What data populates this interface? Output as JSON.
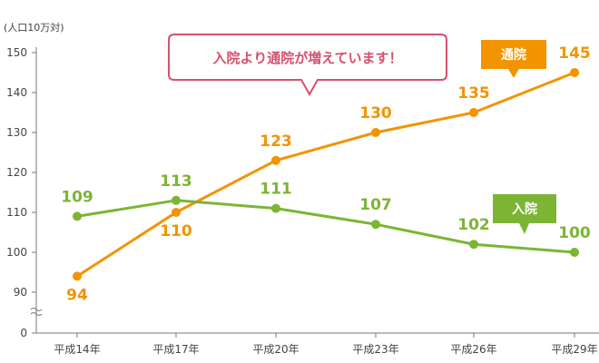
{
  "chart_data": {
    "type": "line",
    "ylabel": "(人口10万対)",
    "categories": [
      "平成14年",
      "平成17年",
      "平成20年",
      "平成23年",
      "平成26年",
      "平成29年"
    ],
    "yticks": [
      0,
      90,
      100,
      110,
      120,
      130,
      140,
      150
    ],
    "ylim": [
      85,
      150
    ],
    "axis_break": true,
    "grid": false,
    "series": [
      {
        "name": "通院",
        "color": "#f29400",
        "values": [
          94,
          110,
          123,
          130,
          135,
          145
        ]
      },
      {
        "name": "入院",
        "color": "#7cb534",
        "values": [
          109,
          113,
          111,
          107,
          102,
          100
        ]
      }
    ],
    "annotation": "入院より通院が増えています！"
  },
  "colors": {
    "axis": "#777777",
    "callout_border": "#d4506e"
  }
}
